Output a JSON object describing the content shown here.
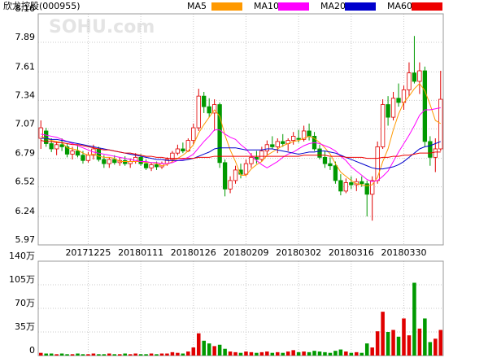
{
  "chart_data": [
    {
      "type": "candlestick",
      "title": "欣龙控股(000955)",
      "watermark": "SOHU.com",
      "categories": [
        null,
        null,
        null,
        null,
        null,
        null,
        null,
        null,
        null,
        "20171225",
        null,
        null,
        null,
        null,
        null,
        null,
        null,
        null,
        null,
        "20180111",
        null,
        null,
        null,
        null,
        null,
        null,
        null,
        null,
        null,
        "20180126",
        null,
        null,
        null,
        null,
        null,
        null,
        null,
        null,
        null,
        "20180209",
        null,
        null,
        null,
        null,
        null,
        null,
        null,
        null,
        null,
        "20180302",
        null,
        null,
        null,
        null,
        null,
        null,
        null,
        null,
        null,
        "20180316",
        null,
        null,
        null,
        null,
        null,
        null,
        null,
        null,
        null,
        "20180330",
        null,
        null,
        null,
        null,
        null,
        null,
        null
      ],
      "open": [
        6.98,
        7.05,
        6.93,
        6.88,
        6.92,
        6.9,
        6.83,
        6.86,
        6.82,
        6.77,
        6.82,
        6.88,
        6.78,
        6.74,
        6.78,
        6.75,
        6.77,
        6.74,
        6.76,
        6.8,
        6.74,
        6.7,
        6.73,
        6.71,
        6.74,
        6.78,
        6.84,
        6.88,
        6.86,
        6.96,
        7.08,
        7.38,
        7.28,
        7.22,
        7.3,
        6.75,
        6.5,
        6.58,
        6.68,
        6.64,
        6.74,
        6.8,
        6.78,
        6.86,
        6.92,
        6.9,
        6.95,
        6.93,
        6.96,
        6.98,
        6.97,
        7.05,
        7.0,
        6.88,
        6.8,
        6.74,
        6.72,
        6.58,
        6.48,
        6.56,
        6.54,
        6.57,
        6.55,
        6.45,
        6.58,
        6.9,
        7.3,
        7.18,
        7.36,
        7.32,
        7.44,
        7.6,
        7.52,
        7.62,
        6.95,
        6.8,
        6.88
      ],
      "high": [
        7.15,
        7.08,
        6.98,
        6.95,
        6.98,
        6.93,
        6.9,
        6.92,
        6.86,
        6.85,
        6.92,
        6.9,
        6.82,
        6.8,
        6.82,
        6.8,
        6.81,
        6.79,
        6.84,
        6.83,
        6.78,
        6.75,
        6.76,
        6.76,
        6.8,
        6.86,
        6.92,
        6.94,
        6.98,
        7.12,
        7.45,
        7.42,
        7.36,
        7.35,
        7.32,
        6.78,
        6.62,
        6.72,
        6.74,
        6.78,
        6.84,
        6.86,
        6.9,
        6.96,
        7.0,
        6.98,
        7.02,
        6.98,
        7.04,
        7.06,
        7.1,
        7.12,
        7.04,
        6.92,
        6.86,
        6.8,
        6.76,
        6.64,
        6.6,
        6.62,
        6.6,
        6.62,
        6.58,
        6.62,
        6.95,
        7.35,
        7.38,
        7.42,
        7.5,
        7.48,
        7.7,
        7.95,
        7.7,
        7.66,
        7.0,
        6.98,
        7.62
      ],
      "low": [
        6.88,
        6.9,
        6.85,
        6.82,
        6.86,
        6.8,
        6.78,
        6.8,
        6.74,
        6.75,
        6.78,
        6.76,
        6.7,
        6.7,
        6.73,
        6.72,
        6.72,
        6.7,
        6.74,
        6.72,
        6.68,
        6.67,
        6.68,
        6.69,
        6.72,
        6.76,
        6.82,
        6.84,
        6.85,
        6.92,
        7.05,
        7.22,
        7.18,
        7.05,
        6.7,
        6.43,
        6.46,
        6.55,
        6.6,
        6.62,
        6.7,
        6.74,
        6.76,
        6.82,
        6.88,
        6.84,
        6.9,
        6.86,
        6.92,
        6.94,
        6.95,
        6.96,
        6.86,
        6.78,
        6.7,
        6.68,
        6.55,
        6.44,
        6.46,
        6.5,
        6.48,
        6.52,
        6.24,
        6.2,
        6.55,
        6.88,
        7.1,
        7.15,
        7.28,
        7.25,
        7.38,
        7.5,
        7.4,
        6.9,
        6.72,
        6.66,
        6.86
      ],
      "close": [
        7.08,
        6.93,
        6.88,
        6.92,
        6.9,
        6.83,
        6.86,
        6.82,
        6.77,
        6.82,
        6.88,
        6.78,
        6.74,
        6.78,
        6.75,
        6.77,
        6.74,
        6.76,
        6.8,
        6.74,
        6.7,
        6.73,
        6.71,
        6.74,
        6.78,
        6.84,
        6.88,
        6.86,
        6.96,
        7.08,
        7.38,
        7.28,
        7.22,
        7.3,
        6.75,
        6.5,
        6.58,
        6.68,
        6.64,
        6.74,
        6.8,
        6.78,
        6.86,
        6.92,
        6.9,
        6.95,
        6.93,
        6.96,
        7.0,
        6.97,
        7.05,
        7.0,
        6.88,
        6.8,
        6.74,
        6.72,
        6.58,
        6.48,
        6.56,
        6.54,
        6.57,
        6.55,
        6.45,
        6.58,
        6.9,
        7.3,
        7.18,
        7.36,
        7.32,
        7.44,
        7.6,
        7.52,
        7.62,
        6.95,
        6.8,
        6.88,
        7.35
      ],
      "up_color": "#e00000",
      "down_color": "#009900",
      "grid": true,
      "ylim": [
        5.97,
        8.16
      ],
      "yticks": [
        5.97,
        6.24,
        6.52,
        6.79,
        7.07,
        7.34,
        7.61,
        7.89,
        8.16
      ],
      "lines": [
        {
          "name": "MA5",
          "color": "#ff9900",
          "values": [
            7.0,
            6.98,
            6.96,
            6.95,
            6.94,
            6.89,
            6.88,
            6.87,
            6.84,
            6.82,
            6.83,
            6.81,
            6.8,
            6.8,
            6.79,
            6.76,
            6.76,
            6.76,
            6.76,
            6.76,
            6.75,
            6.75,
            6.74,
            6.72,
            6.73,
            6.76,
            6.79,
            6.82,
            6.86,
            6.92,
            7.03,
            7.11,
            7.18,
            7.25,
            7.19,
            7.01,
            6.87,
            6.76,
            6.63,
            6.63,
            6.69,
            6.73,
            6.76,
            6.82,
            6.85,
            6.88,
            6.91,
            6.93,
            6.95,
            6.96,
            6.98,
            7.0,
            6.98,
            6.94,
            6.89,
            6.83,
            6.74,
            6.66,
            6.62,
            6.58,
            6.55,
            6.54,
            6.53,
            6.54,
            6.61,
            6.76,
            6.88,
            7.06,
            7.21,
            7.32,
            7.38,
            7.45,
            7.5,
            7.43,
            7.3,
            7.15,
            7.12
          ]
        },
        {
          "name": "MA10",
          "color": "#ff00ff",
          "values": [
            7.02,
            7.01,
            7.0,
            6.99,
            6.97,
            6.95,
            6.93,
            6.91,
            6.89,
            6.87,
            6.85,
            6.84,
            6.83,
            6.82,
            6.81,
            6.8,
            6.79,
            6.78,
            6.77,
            6.76,
            6.76,
            6.75,
            6.75,
            6.74,
            6.74,
            6.75,
            6.77,
            6.78,
            6.8,
            6.83,
            6.89,
            6.95,
            7.0,
            7.06,
            7.06,
            7.02,
            6.99,
            6.97,
            6.92,
            6.88,
            6.82,
            6.77,
            6.73,
            6.7,
            6.73,
            6.76,
            6.8,
            6.83,
            6.85,
            6.88,
            6.91,
            6.93,
            6.94,
            6.93,
            6.91,
            6.89,
            6.86,
            6.81,
            6.77,
            6.71,
            6.67,
            6.63,
            6.59,
            6.57,
            6.58,
            6.62,
            6.67,
            6.76,
            6.85,
            6.93,
            7.01,
            7.1,
            7.2,
            7.25,
            7.25,
            7.26,
            7.27
          ]
        },
        {
          "name": "MA20",
          "color": "#0000cc",
          "values": [
            6.98,
            6.98,
            6.97,
            6.97,
            6.96,
            6.95,
            6.94,
            6.93,
            6.92,
            6.91,
            6.9,
            6.89,
            6.88,
            6.87,
            6.86,
            6.85,
            6.84,
            6.83,
            6.82,
            6.81,
            6.8,
            6.79,
            6.78,
            6.78,
            6.77,
            6.77,
            6.77,
            6.77,
            6.78,
            6.79,
            6.81,
            6.83,
            6.85,
            6.88,
            6.89,
            6.89,
            6.89,
            6.89,
            6.88,
            6.87,
            6.87,
            6.87,
            6.87,
            6.88,
            6.88,
            6.87,
            6.86,
            6.85,
            6.84,
            6.83,
            6.84,
            6.85,
            6.85,
            6.86,
            6.86,
            6.85,
            6.84,
            6.82,
            6.8,
            6.78,
            6.76,
            6.74,
            6.72,
            6.7,
            6.69,
            6.69,
            6.7,
            6.71,
            6.73,
            6.76,
            6.8,
            6.84,
            6.88,
            6.9,
            6.91,
            6.93,
            6.95
          ]
        },
        {
          "name": "MA60",
          "color": "#ee0000",
          "values": [
            6.96,
            6.95,
            6.95,
            6.94,
            6.94,
            6.93,
            6.92,
            6.92,
            6.91,
            6.9,
            6.89,
            6.88,
            6.87,
            6.87,
            6.86,
            6.85,
            6.84,
            6.84,
            6.83,
            6.82,
            6.81,
            6.81,
            6.8,
            6.8,
            6.79,
            6.79,
            6.79,
            6.79,
            6.79,
            6.79,
            6.8,
            6.8,
            6.8,
            6.81,
            6.81,
            6.81,
            6.81,
            6.81,
            6.81,
            6.81,
            6.81,
            6.81,
            6.81,
            6.81,
            6.81,
            6.81,
            6.81,
            6.81,
            6.81,
            6.81,
            6.82,
            6.82,
            6.82,
            6.82,
            6.82,
            6.81,
            6.81,
            6.81,
            6.8,
            6.8,
            6.8,
            6.8,
            6.79,
            6.79,
            6.79,
            6.8,
            6.8,
            6.81,
            6.81,
            6.82,
            6.82,
            6.83,
            6.84,
            6.84,
            6.84,
            6.85,
            6.85
          ]
        }
      ]
    },
    {
      "type": "bar",
      "values": [
        4,
        3,
        3,
        2,
        3,
        2,
        2,
        3,
        2,
        2,
        3,
        2,
        2,
        3,
        2,
        2,
        3,
        2,
        3,
        2,
        2,
        3,
        2,
        3,
        3,
        5,
        4,
        3,
        6,
        12,
        33,
        22,
        18,
        14,
        16,
        10,
        6,
        5,
        4,
        6,
        5,
        4,
        5,
        6,
        4,
        5,
        4,
        6,
        8,
        5,
        6,
        5,
        7,
        6,
        5,
        4,
        7,
        9,
        6,
        4,
        5,
        4,
        18,
        12,
        36,
        65,
        35,
        38,
        28,
        55,
        30,
        108,
        40,
        55,
        20,
        25,
        38
      ],
      "ylim": [
        0,
        140
      ],
      "yticks": [
        0,
        {
          "value": 35,
          "label": "35万"
        },
        {
          "value": 70,
          "label": "70万"
        },
        {
          "value": 105,
          "label": "105万"
        },
        {
          "value": 140,
          "label": "140万"
        }
      ],
      "grid": true
    }
  ]
}
